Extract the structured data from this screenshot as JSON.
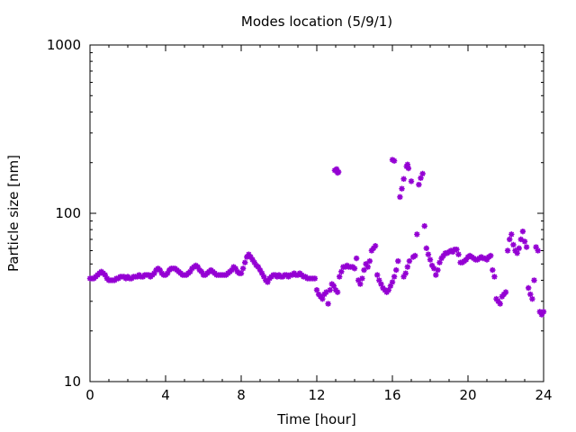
{
  "chart_data": {
    "type": "scatter",
    "title": "Modes location (5/9/1)",
    "xlabel": "Time [hour]",
    "ylabel": "Particle size [nm]",
    "xlim": [
      0,
      24
    ],
    "ylim": [
      10,
      1000
    ],
    "yscale": "log",
    "grid": false,
    "legend": "none",
    "x_ticks": [
      0,
      4,
      8,
      12,
      16,
      20,
      24
    ],
    "x_tick_labels": [
      "0",
      "4",
      "8",
      "12",
      "16",
      "20",
      "24"
    ],
    "y_ticks": [
      10,
      100,
      1000
    ],
    "y_tick_labels": [
      "10",
      "100",
      "1000"
    ],
    "colors": {
      "marker": "#9400d3"
    },
    "series": [
      {
        "marker": "star",
        "points": [
          [
            0.0,
            41
          ],
          [
            0.1,
            41
          ],
          [
            0.2,
            41
          ],
          [
            0.3,
            42
          ],
          [
            0.4,
            43
          ],
          [
            0.5,
            44
          ],
          [
            0.6,
            45
          ],
          [
            0.7,
            44
          ],
          [
            0.8,
            43
          ],
          [
            0.9,
            41
          ],
          [
            1.0,
            40
          ],
          [
            1.1,
            40
          ],
          [
            1.2,
            40
          ],
          [
            1.3,
            40
          ],
          [
            1.4,
            41
          ],
          [
            1.5,
            41
          ],
          [
            1.6,
            42
          ],
          [
            1.7,
            42
          ],
          [
            1.8,
            42
          ],
          [
            1.9,
            41
          ],
          [
            2.0,
            42
          ],
          [
            2.1,
            41
          ],
          [
            2.2,
            41
          ],
          [
            2.3,
            42
          ],
          [
            2.4,
            42
          ],
          [
            2.5,
            42
          ],
          [
            2.6,
            43
          ],
          [
            2.7,
            42
          ],
          [
            2.8,
            42
          ],
          [
            2.9,
            43
          ],
          [
            3.0,
            43
          ],
          [
            3.1,
            43
          ],
          [
            3.2,
            42
          ],
          [
            3.3,
            43
          ],
          [
            3.4,
            44
          ],
          [
            3.5,
            46
          ],
          [
            3.6,
            47
          ],
          [
            3.7,
            46
          ],
          [
            3.8,
            44
          ],
          [
            3.9,
            43
          ],
          [
            4.0,
            43
          ],
          [
            4.1,
            44
          ],
          [
            4.2,
            46
          ],
          [
            4.3,
            47
          ],
          [
            4.4,
            47
          ],
          [
            4.5,
            47
          ],
          [
            4.6,
            46
          ],
          [
            4.7,
            45
          ],
          [
            4.8,
            44
          ],
          [
            4.9,
            43
          ],
          [
            5.0,
            43
          ],
          [
            5.1,
            43
          ],
          [
            5.2,
            44
          ],
          [
            5.3,
            45
          ],
          [
            5.4,
            47
          ],
          [
            5.5,
            48
          ],
          [
            5.6,
            49
          ],
          [
            5.7,
            48
          ],
          [
            5.8,
            46
          ],
          [
            5.9,
            45
          ],
          [
            6.0,
            43
          ],
          [
            6.1,
            43
          ],
          [
            6.2,
            44
          ],
          [
            6.3,
            45
          ],
          [
            6.4,
            46
          ],
          [
            6.5,
            45
          ],
          [
            6.6,
            44
          ],
          [
            6.7,
            43
          ],
          [
            6.8,
            43
          ],
          [
            6.9,
            43
          ],
          [
            7.0,
            43
          ],
          [
            7.1,
            43
          ],
          [
            7.2,
            43
          ],
          [
            7.3,
            44
          ],
          [
            7.4,
            45
          ],
          [
            7.5,
            46
          ],
          [
            7.6,
            48
          ],
          [
            7.7,
            47
          ],
          [
            7.8,
            45
          ],
          [
            7.9,
            44
          ],
          [
            8.0,
            44
          ],
          [
            8.1,
            47
          ],
          [
            8.2,
            51
          ],
          [
            8.3,
            55
          ],
          [
            8.4,
            57
          ],
          [
            8.5,
            55
          ],
          [
            8.6,
            53
          ],
          [
            8.7,
            51
          ],
          [
            8.8,
            49
          ],
          [
            8.9,
            48
          ],
          [
            9.0,
            46
          ],
          [
            9.1,
            44
          ],
          [
            9.2,
            42
          ],
          [
            9.3,
            40
          ],
          [
            9.4,
            39
          ],
          [
            9.5,
            41
          ],
          [
            9.6,
            42
          ],
          [
            9.7,
            43
          ],
          [
            9.8,
            43
          ],
          [
            9.9,
            42
          ],
          [
            10.0,
            43
          ],
          [
            10.1,
            42
          ],
          [
            10.2,
            42
          ],
          [
            10.3,
            43
          ],
          [
            10.4,
            43
          ],
          [
            10.5,
            42
          ],
          [
            10.6,
            43
          ],
          [
            10.7,
            43
          ],
          [
            10.8,
            44
          ],
          [
            10.9,
            43
          ],
          [
            11.0,
            43
          ],
          [
            11.1,
            44
          ],
          [
            11.2,
            43
          ],
          [
            11.3,
            42
          ],
          [
            11.4,
            42
          ],
          [
            11.5,
            41
          ],
          [
            11.6,
            41
          ],
          [
            11.7,
            41
          ],
          [
            11.8,
            41
          ],
          [
            11.9,
            41
          ],
          [
            12.0,
            35
          ],
          [
            12.1,
            33
          ],
          [
            12.2,
            32
          ],
          [
            12.3,
            31
          ],
          [
            12.4,
            33
          ],
          [
            12.5,
            34
          ],
          [
            12.6,
            29
          ],
          [
            12.7,
            35
          ],
          [
            12.8,
            38
          ],
          [
            12.9,
            37
          ],
          [
            13.0,
            35
          ],
          [
            13.1,
            34
          ],
          [
            13.2,
            42
          ],
          [
            13.3,
            45
          ],
          [
            13.4,
            48
          ],
          [
            13.5,
            48
          ],
          [
            13.6,
            49
          ],
          [
            13.7,
            48
          ],
          [
            13.8,
            48
          ],
          [
            13.9,
            48
          ],
          [
            14.0,
            47
          ],
          [
            14.1,
            54
          ],
          [
            14.2,
            40
          ],
          [
            14.3,
            38
          ],
          [
            14.4,
            41
          ],
          [
            14.5,
            46
          ],
          [
            14.6,
            50
          ],
          [
            14.7,
            48
          ],
          [
            14.8,
            52
          ],
          [
            14.9,
            60
          ],
          [
            15.0,
            62
          ],
          [
            15.1,
            64
          ],
          [
            15.2,
            43
          ],
          [
            15.3,
            40
          ],
          [
            15.4,
            38
          ],
          [
            15.5,
            36
          ],
          [
            15.6,
            35
          ],
          [
            15.7,
            34
          ],
          [
            15.8,
            35
          ],
          [
            15.9,
            37
          ],
          [
            16.0,
            39
          ],
          [
            16.1,
            42
          ],
          [
            16.2,
            46
          ],
          [
            16.3,
            52
          ],
          [
            16.4,
            125
          ],
          [
            16.5,
            140
          ],
          [
            16.6,
            42
          ],
          [
            16.7,
            44
          ],
          [
            16.8,
            48
          ],
          [
            16.9,
            52
          ],
          [
            17.0,
            155
          ],
          [
            17.1,
            55
          ],
          [
            17.2,
            56
          ],
          [
            17.3,
            75
          ],
          [
            17.4,
            148
          ],
          [
            17.5,
            162
          ],
          [
            17.6,
            172
          ],
          [
            17.7,
            84
          ],
          [
            17.8,
            62
          ],
          [
            17.9,
            57
          ],
          [
            18.0,
            53
          ],
          [
            18.1,
            49
          ],
          [
            18.2,
            47
          ],
          [
            18.3,
            43
          ],
          [
            18.4,
            46
          ],
          [
            18.5,
            51
          ],
          [
            18.6,
            54
          ],
          [
            18.7,
            56
          ],
          [
            18.8,
            58
          ],
          [
            18.9,
            58
          ],
          [
            19.0,
            59
          ],
          [
            19.1,
            60
          ],
          [
            19.2,
            59
          ],
          [
            19.3,
            61
          ],
          [
            19.4,
            61
          ],
          [
            19.5,
            57
          ],
          [
            19.6,
            51
          ],
          [
            19.7,
            51
          ],
          [
            19.8,
            52
          ],
          [
            19.9,
            53
          ],
          [
            20.0,
            55
          ],
          [
            20.1,
            56
          ],
          [
            20.2,
            55
          ],
          [
            20.3,
            54
          ],
          [
            20.4,
            53
          ],
          [
            20.5,
            53
          ],
          [
            20.6,
            54
          ],
          [
            20.7,
            55
          ],
          [
            20.8,
            54
          ],
          [
            20.9,
            54
          ],
          [
            21.0,
            53
          ],
          [
            21.1,
            55
          ],
          [
            21.2,
            56
          ],
          [
            21.3,
            46
          ],
          [
            21.4,
            42
          ],
          [
            21.5,
            31
          ],
          [
            21.6,
            30
          ],
          [
            21.7,
            29
          ],
          [
            21.8,
            32
          ],
          [
            21.9,
            33
          ],
          [
            22.0,
            34
          ],
          [
            22.1,
            60
          ],
          [
            22.2,
            70
          ],
          [
            22.3,
            75
          ],
          [
            22.4,
            65
          ],
          [
            22.5,
            60
          ],
          [
            22.6,
            58
          ],
          [
            22.7,
            62
          ],
          [
            22.8,
            70
          ],
          [
            22.9,
            78
          ],
          [
            23.0,
            68
          ],
          [
            23.1,
            63
          ],
          [
            23.2,
            36
          ],
          [
            23.3,
            33
          ],
          [
            23.4,
            31
          ],
          [
            23.5,
            40
          ],
          [
            23.6,
            63
          ],
          [
            23.7,
            60
          ],
          [
            23.8,
            26
          ],
          [
            23.9,
            25
          ],
          [
            24.0,
            26
          ],
          [
            12.95,
            180
          ],
          [
            13.05,
            183
          ],
          [
            13.15,
            176
          ],
          [
            13.1,
            174
          ],
          [
            16.0,
            208
          ],
          [
            16.1,
            205
          ],
          [
            16.6,
            160
          ],
          [
            16.75,
            190
          ],
          [
            16.8,
            195
          ],
          [
            16.85,
            185
          ]
        ]
      }
    ]
  }
}
